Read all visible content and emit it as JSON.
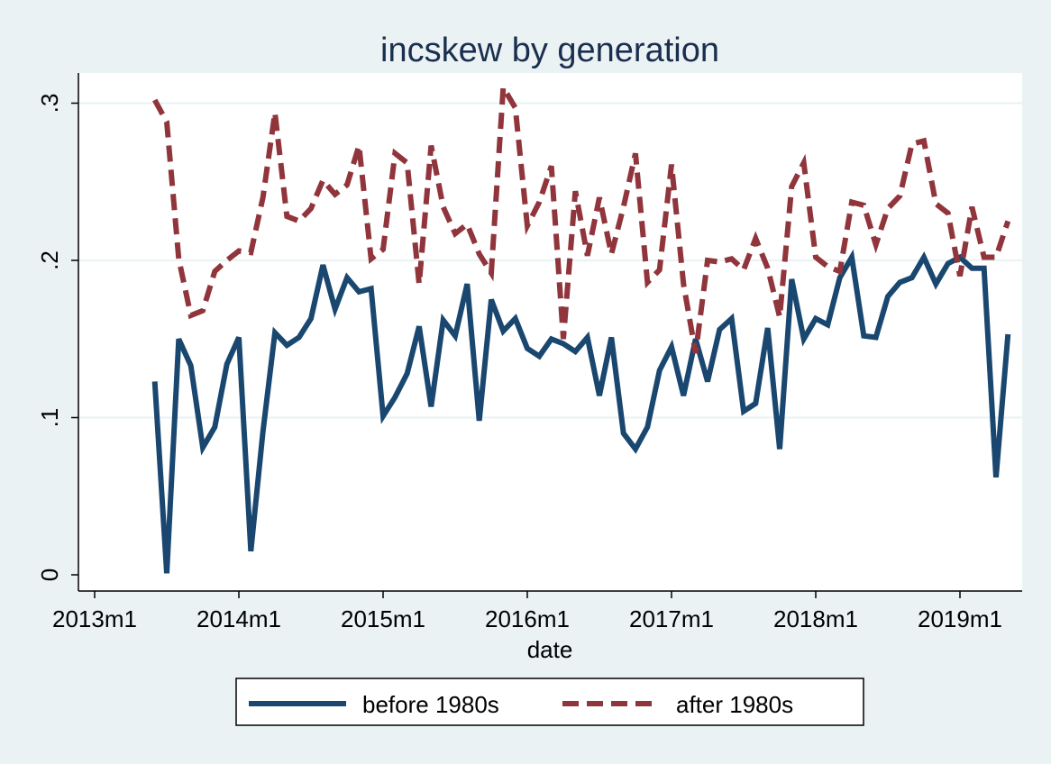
{
  "chart_data": {
    "type": "line",
    "title": "incskew by generation",
    "xlabel": "date",
    "ylabel": "",
    "x_ticks": [
      "2013m1",
      "2014m1",
      "2015m1",
      "2016m1",
      "2017m1",
      "2018m1",
      "2019m1"
    ],
    "y_ticks": [
      "0",
      ".1",
      ".2",
      ".3"
    ],
    "ylim": [
      0,
      0.3
    ],
    "xlim": [
      "2013m1",
      "2019m5"
    ],
    "grid": true,
    "legend_position": "bottom",
    "x": [
      "2013m6",
      "2013m7",
      "2013m8",
      "2013m9",
      "2013m10",
      "2013m11",
      "2013m12",
      "2014m1",
      "2014m2",
      "2014m3",
      "2014m4",
      "2014m5",
      "2014m6",
      "2014m7",
      "2014m8",
      "2014m9",
      "2014m10",
      "2014m11",
      "2014m12",
      "2015m1",
      "2015m2",
      "2015m3",
      "2015m4",
      "2015m5",
      "2015m6",
      "2015m7",
      "2015m8",
      "2015m9",
      "2015m10",
      "2015m11",
      "2015m12",
      "2016m1",
      "2016m2",
      "2016m3",
      "2016m4",
      "2016m5",
      "2016m6",
      "2016m7",
      "2016m8",
      "2016m9",
      "2016m10",
      "2016m11",
      "2016m12",
      "2017m1",
      "2017m2",
      "2017m3",
      "2017m4",
      "2017m5",
      "2017m6",
      "2017m7",
      "2017m8",
      "2017m9",
      "2017m10",
      "2017m11",
      "2017m12",
      "2018m1",
      "2018m2",
      "2018m3",
      "2018m4",
      "2018m5",
      "2018m6",
      "2018m7",
      "2018m8",
      "2018m9",
      "2018m10",
      "2018m11",
      "2018m12",
      "2019m1",
      "2019m2",
      "2019m3",
      "2019m4",
      "2019m5"
    ],
    "series": [
      {
        "name": "before 1980s",
        "color": "#1a476f",
        "dash": "solid",
        "values": [
          0.123,
          0.001,
          0.15,
          0.133,
          0.081,
          0.094,
          0.134,
          0.151,
          0.015,
          0.091,
          0.154,
          0.146,
          0.151,
          0.163,
          0.197,
          0.169,
          0.189,
          0.18,
          0.182,
          0.101,
          0.113,
          0.128,
          0.158,
          0.107,
          0.162,
          0.152,
          0.185,
          0.098,
          0.175,
          0.155,
          0.163,
          0.144,
          0.139,
          0.15,
          0.147,
          0.142,
          0.151,
          0.114,
          0.151,
          0.09,
          0.08,
          0.094,
          0.13,
          0.145,
          0.114,
          0.15,
          0.123,
          0.156,
          0.163,
          0.104,
          0.109,
          0.157,
          0.08,
          0.188,
          0.15,
          0.163,
          0.159,
          0.189,
          0.202,
          0.152,
          0.151,
          0.177,
          0.186,
          0.189,
          0.202,
          0.185,
          0.198,
          0.202,
          0.195,
          0.195,
          0.062,
          0.153
        ]
      },
      {
        "name": "after 1980s",
        "color": "#90353b",
        "dash": "dashed",
        "values": [
          0.302,
          0.288,
          0.201,
          0.165,
          0.168,
          0.193,
          0.2,
          0.206,
          0.205,
          0.24,
          0.294,
          0.228,
          0.225,
          0.233,
          0.251,
          0.242,
          0.248,
          0.273,
          0.201,
          0.207,
          0.268,
          0.262,
          0.185,
          0.273,
          0.234,
          0.217,
          0.223,
          0.204,
          0.192,
          0.31,
          0.297,
          0.222,
          0.237,
          0.26,
          0.15,
          0.244,
          0.203,
          0.24,
          0.204,
          0.234,
          0.268,
          0.186,
          0.194,
          0.261,
          0.185,
          0.141,
          0.2,
          0.199,
          0.201,
          0.194,
          0.214,
          0.195,
          0.164,
          0.247,
          0.262,
          0.202,
          0.196,
          0.193,
          0.237,
          0.235,
          0.21,
          0.233,
          0.241,
          0.274,
          0.276,
          0.236,
          0.23,
          0.19,
          0.234,
          0.202,
          0.202,
          0.225
        ]
      }
    ]
  }
}
